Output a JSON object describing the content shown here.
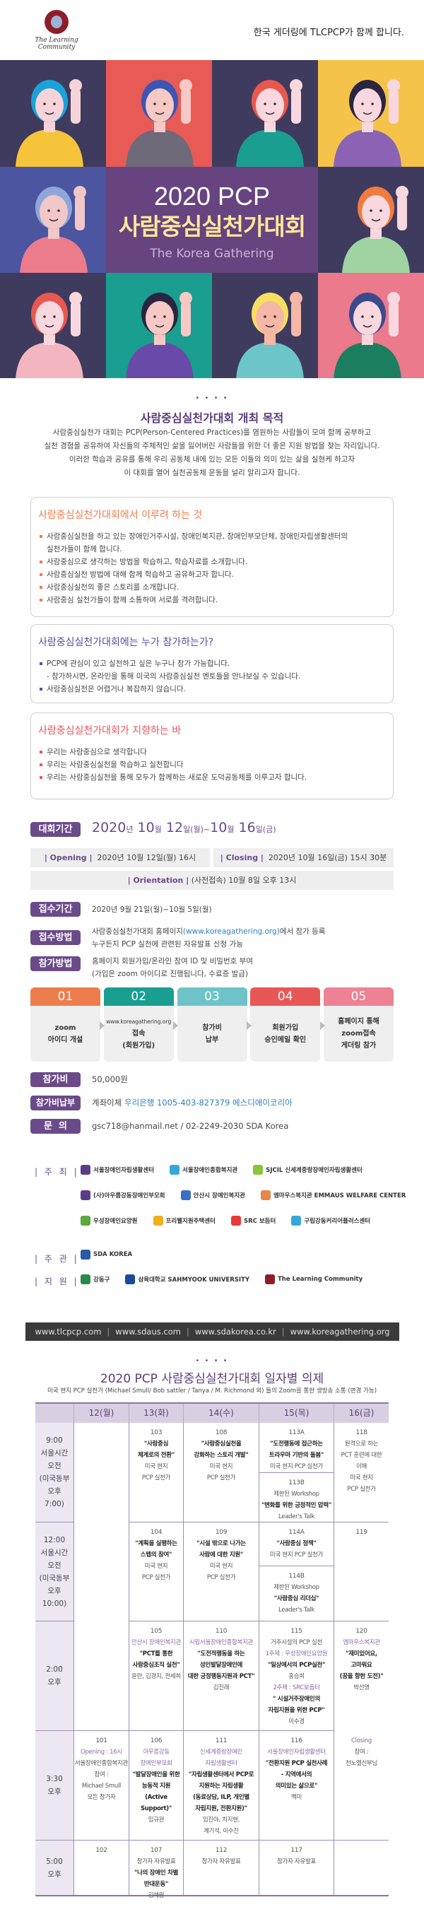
{
  "header": {
    "logo_text": "The Learning Community",
    "tagline": "한국 게더링에 TLCPCP가 함께 합니다."
  },
  "hero": {
    "year": "2020 PCP",
    "title": "사람중심실천가대회",
    "subtitle": "The Korea Gathering",
    "tiles": [
      {
        "bg": "#3f3b5e",
        "hair": "#1aa3d9",
        "shirt": "#f5c43a",
        "skin": "#f6d3d8"
      },
      {
        "bg": "#e85a56",
        "hair": "#3c55b3",
        "shirt": "#6e6a7a",
        "skin": "#f6c9c4"
      },
      {
        "bg": "#3f3b5e",
        "hair": "#e8584f",
        "shirt": "#1a9e8f",
        "skin": "#f8d8de"
      },
      {
        "bg": "#f6c34a",
        "hair": "#2a2540",
        "shirt": "#8a63b5",
        "skin": "#f8d8de"
      },
      {
        "bg": "#4b55a0",
        "hair": "#8fa6d8",
        "shirt": "#ec7b8c",
        "skin": "#f2c7c7"
      },
      {
        "bg": "#3f3b5e",
        "hair": "#ef7b3e",
        "shirt": "#9fd3a2",
        "skin": "#f8d8de"
      },
      {
        "bg": "#3f3b5e",
        "hair": "#e8584f",
        "shirt": "#f3b6c0",
        "skin": "#f8d8de"
      },
      {
        "bg": "#1a9e8f",
        "hair": "#2a2540",
        "shirt": "#6a4aa8",
        "skin": "#f6c9c4"
      },
      {
        "bg": "#3f3b5e",
        "hair": "#f7df62",
        "shirt": "#6cc6c8",
        "skin": "#f5b7a6"
      },
      {
        "bg": "#ea7a8c",
        "hair": "#3b4a8a",
        "shirt": "#1b7f5f",
        "skin": "#f8d8de"
      }
    ]
  },
  "purpose": {
    "dots": "• • • •",
    "title": "사람중심실천가대회 개최 목적",
    "lines": [
      "사람중심실천가 대회는 PCP(Person-Centered Practices)를 염원하는 사람들이 모여 함께 공부하고",
      "실천 경험을 공유하여 자신들의 주체적인 삶을 잃어버린 사람들을 위한 더 좋은 지원 방법을 찾는 자리입니다.",
      "이러한 학습과 공유를 통해 우리 공동체 내에 있는 모든 이들의 의미 있는 삶을 실현케 하고자",
      "이 대회를 열어 실천공동체 운동을 널리 알리고자 합니다."
    ]
  },
  "boxes": [
    {
      "title": "사람중심실천가대회에서 이루려 하는 것",
      "color": "#ef7b4d",
      "items": [
        "사람중심실천을 하고 있는 장애인거주시설, 장애인복지관, 장애인부모단체, 장애인자립생활센터의",
        "실천가들이 함께 합니다.",
        "사람중심으로 생각하는 방법을 학습하고, 학습자료를 소개합니다.",
        "사람중심실천 방법에 대해 함께 학습하고 공유하고자 합니다.",
        "사람중심실천의 좋은 스토리를 소개합니다.",
        "사람중심 실천가들이 함께 소통하며 서로를 격려합니다."
      ]
    },
    {
      "title": "사람중심실천가대회에는 누가 참가하는가?",
      "color": "#5a4ca0",
      "items": [
        "PCP에 관심이 있고 실천하고 싶은 누구나 참가 가능합니다.",
        "- 참가하시면, 온라인을 통해 미국의 사람중심실천 멘토들을 만나보실 수 있습니다.",
        "사람중심실천은 어렵거나 복잡하지 않습니다."
      ]
    },
    {
      "title": "사람중심실천가대회가 지향하는 바",
      "color": "#e8555e",
      "items": [
        "우리는 사람중심으로 생각합니다",
        "우리는 사람중심실천을 학습하고 실천합니다",
        "우리는 사람중심실천을 통해 모두가 함께하는 새로운 도덕공동체를 이루고자 합니다."
      ]
    }
  ],
  "event": {
    "period_label": "대회기간",
    "period": {
      "y": "2020",
      "y_u": "년",
      "m1": "10",
      "m_u": "월",
      "d1": "12",
      "d1_u": "일(월)~",
      "m2": "10",
      "d2": "16",
      "d2_u": "일(금)"
    },
    "opening_label": "| Opening |",
    "opening": "2020년 10월 12일(월) 16시",
    "closing_label": "| Closing |",
    "closing": "2020년 10월 16일(금) 15시 30분",
    "orientation_label": "| Orientation |",
    "orientation": "(사전접속) 10월 8일 오후 13시",
    "reg_period_label": "접수기간",
    "reg_period": "2020년 9월 21일(월)~10월 5일(월)",
    "reg_method_label": "접수방법",
    "reg_method_pre": "사람중심실천가대회 홈페이지",
    "reg_method_link": "(www.koreagathering.org)",
    "reg_method_post": "에서 참가 등록",
    "reg_method_line2": "누구든지 PCP 실천에 관련된 자유발표 신청 가능",
    "join_method_label": "참가방법",
    "join_method_line1": "홈페이지 회원가입/온라인 참여 ID 및 비밀번호 부여",
    "join_method_line2": "(가입은 zoom 아이디로 진행됩니다, 수료증 발급)",
    "fee_label": "참가비",
    "fee": "50,000원",
    "payment_label": "참가비납부",
    "payment_pre": "계좌이체 ",
    "payment_account": "우리은행 1005-403-827379 에스디에이코리아",
    "contact_label": "문  의",
    "contact": "gsc718@hanmail.net / 02-2249-2030 SDA Korea"
  },
  "steps": [
    {
      "num": "01",
      "color": "#ee7d4d",
      "small": "",
      "lines": [
        "zoom",
        "아이디 개설"
      ]
    },
    {
      "num": "02",
      "color": "#1a9e92",
      "small": "www.koreagathering.org",
      "lines": [
        "접속",
        "(회원가입)"
      ]
    },
    {
      "num": "03",
      "color": "#6ec3c8",
      "small": "",
      "lines": [
        "참가비",
        "납부"
      ]
    },
    {
      "num": "04",
      "color": "#e85757",
      "small": "",
      "lines": [
        "회원가입",
        "승인메일 확인"
      ]
    },
    {
      "num": "05",
      "color": "#ee8194",
      "small": "",
      "lines": [
        "홈페이지 통해",
        "zoom접속",
        "게더링 참가"
      ]
    }
  ],
  "sponsors": {
    "host_label": "| 주 최 |",
    "host_rows": [
      [
        {
          "name": "서울장애인자립생활센터",
          "color": "#5a3d8a"
        },
        {
          "name": "서울장애인종합복지관",
          "color": "#35a8d8"
        },
        {
          "name": "SJCIL 신세계중랑장애인자립생활센터",
          "color": "#8cc43c"
        }
      ],
      [
        {
          "name": "(사)아우름강동장애인부모회",
          "color": "#5a3d8a"
        },
        {
          "name": "안산시 장애인복지관",
          "color": "#3b6fc4"
        },
        {
          "name": "엠마우스복지관 EMMAUS WELFARE CENTER",
          "color": "#e8874a"
        }
      ],
      [
        {
          "name": "우성장애인요양원",
          "color": "#5caa3c"
        },
        {
          "name": "프리웰지원주택센터",
          "color": "#f0b020"
        },
        {
          "name": "SRC 보듬터",
          "color": "#e83a3a"
        },
        {
          "name": "구립강동커리어플러스센터",
          "color": "#35a8d8"
        }
      ]
    ],
    "organizer_label": "| 주 관 |",
    "organizer": [
      {
        "name": "SDA KOREA",
        "color": "#2a5aa8"
      }
    ],
    "support_label": "| 지 원 |",
    "support": [
      {
        "name": "강동구",
        "color": "#2a8a4a"
      },
      {
        "name": "삼육대학교 SAHMYOOK UNIVERSITY",
        "color": "#1a4a9a"
      },
      {
        "name": "The Learning Community",
        "color": "#8e1d2c"
      }
    ]
  },
  "footer_links": [
    "www.tlcpcp.com",
    "www.sdaus.com",
    "www.sdakorea.co.kr",
    "www.koreagathering.org"
  ],
  "agenda": {
    "dots": "• • • •",
    "title": "2020 PCP 사람중심실천가대회 일자별 의제",
    "subtitle": "미국 현지 PCP 실천가 (Michael Smull/ Bob sattler / Tanya / M. Richmond 외) 들의 Zoom을 통한 생방송 소통 (변경 가능)",
    "days": [
      "12(월)",
      "13(화)",
      "14(수)",
      "15(목)",
      "16(금)"
    ],
    "times": [
      [
        "9:00",
        "서울시간",
        "오전",
        "(미국동부",
        "오후",
        "7:00)"
      ],
      [
        "12:00",
        "서울시간",
        "오전",
        "(미국동부",
        "오후",
        "10:00)"
      ],
      [
        "2:00",
        "오후"
      ],
      [
        "3:30",
        "오후"
      ],
      [
        "5:00",
        "오후"
      ]
    ],
    "cells": [
      {
        "key": "c103",
        "lines": [
          [
            "n",
            "103"
          ],
          [
            "b",
            "\"사람중심"
          ],
          [
            "b",
            "체계로의 전환\""
          ],
          [
            "p",
            "미국 현지"
          ],
          [
            "p",
            "PCP 실천가"
          ]
        ]
      },
      {
        "key": "c108",
        "lines": [
          [
            "n",
            "108"
          ],
          [
            "b",
            "\"사람중심실천을"
          ],
          [
            "b",
            "강화하는 스토리 개발\""
          ],
          [
            "p",
            "미국 현지"
          ],
          [
            "p",
            "PCP 실천가"
          ]
        ]
      },
      {
        "key": "c113a",
        "lines": [
          [
            "n",
            "113A"
          ],
          [
            "b",
            "\"도전행동에 접근하는"
          ],
          [
            "b",
            "트라우마 기반의 돌봄\""
          ],
          [
            "p",
            "미국 현지 PCP 실천가"
          ]
        ]
      },
      {
        "key": "c113b",
        "lines": [
          [
            "n",
            "113B"
          ],
          [
            "p",
            "제한된 Workshop"
          ],
          [
            "b",
            "\"변화를 위한 긍정적인 압력\""
          ],
          [
            "p",
            "Leader's Talk"
          ]
        ]
      },
      {
        "key": "c118",
        "lines": [
          [
            "n",
            "118"
          ],
          [
            "p",
            "원격으로 하는"
          ],
          [
            "p",
            "PCT 훈련에 대한"
          ],
          [
            "p",
            "이해"
          ],
          [
            "p",
            "미국 현지"
          ],
          [
            "p",
            "PCP 실천가"
          ]
        ]
      },
      {
        "key": "c104",
        "lines": [
          [
            "n",
            "104"
          ],
          [
            "b",
            "\"계획을 실행하는"
          ],
          [
            "b",
            "스텝의 참여\""
          ],
          [
            "p",
            "미국 현지"
          ],
          [
            "p",
            "PCP 실천가"
          ]
        ]
      },
      {
        "key": "c109",
        "lines": [
          [
            "n",
            "109"
          ],
          [
            "b",
            "\"시설 밖으로 나가는"
          ],
          [
            "b",
            "사람에 대한 지원\""
          ],
          [
            "p",
            "미국 현지"
          ],
          [
            "p",
            "PCP 실천가"
          ]
        ]
      },
      {
        "key": "c114a",
        "lines": [
          [
            "n",
            "114A"
          ],
          [
            "b",
            "\"사람중심 정책\""
          ],
          [
            "p",
            "미국 현지 PCP 실천가"
          ]
        ]
      },
      {
        "key": "c114b",
        "lines": [
          [
            "n",
            "114B"
          ],
          [
            "p",
            "제한된 Workshop"
          ],
          [
            "b",
            "\"사람중심 리더십\""
          ],
          [
            "p",
            "Leader's Talk"
          ]
        ]
      },
      {
        "key": "c119",
        "lines": [
          [
            "n",
            "119"
          ]
        ]
      },
      {
        "key": "c105",
        "lines": [
          [
            "n",
            "105"
          ],
          [
            "o",
            "안산시 장애인복지관"
          ],
          [
            "b",
            "\"PCT를 통한"
          ],
          [
            "b",
            "사람중심조직 실천\""
          ],
          [
            "p",
            "윤란, 김경지, 전세희"
          ]
        ]
      },
      {
        "key": "c110",
        "lines": [
          [
            "n",
            "110"
          ],
          [
            "o",
            "시립서울장애인종합복지관"
          ],
          [
            "b",
            "\"도전적행동을 하는"
          ],
          [
            "b",
            "성인발달장애인에"
          ],
          [
            "b",
            "대한 긍정행동지원과 PCT\""
          ],
          [
            "p",
            "김진래"
          ]
        ]
      },
      {
        "key": "c115",
        "lines": [
          [
            "n",
            "115"
          ],
          [
            "p",
            "거주시설의 PCP 실천"
          ],
          [
            "o",
            "1주제 : 우성장애인요양원"
          ],
          [
            "b",
            "\"일상에서의 PCP실천\""
          ],
          [
            "p",
            "홍승희"
          ],
          [
            "o",
            "2주제 : SRC보듬터"
          ],
          [
            "b",
            "\" 시설거주장애인의"
          ],
          [
            "b",
            "자립지원을 위한 PCP\""
          ],
          [
            "p",
            "이수경"
          ]
        ]
      },
      {
        "key": "c120",
        "lines": [
          [
            "n",
            "120"
          ],
          [
            "o",
            "엠마우스복지관"
          ],
          [
            "b",
            "\"재미있어요,"
          ],
          [
            "b",
            "고마워요"
          ],
          [
            "b",
            "(꿈을 향한 도전)\""
          ],
          [
            "p",
            "박선영"
          ]
        ]
      },
      {
        "key": "c101",
        "lines": [
          [
            "n",
            "101"
          ],
          [
            "o",
            "Opening : 16시"
          ],
          [
            "p",
            "서울장애인종합복지관"
          ],
          [
            "p",
            "참여 :"
          ],
          [
            "p",
            "Michael Smull"
          ],
          [
            "p",
            "모든 참가자"
          ]
        ]
      },
      {
        "key": "c106",
        "lines": [
          [
            "n",
            "106"
          ],
          [
            "o",
            "아우름강동"
          ],
          [
            "o",
            "장애인부모회"
          ],
          [
            "b",
            "\"발달장애인을 위한"
          ],
          [
            "b",
            "능동적 지원"
          ],
          [
            "b",
            "(Active Support)\""
          ],
          [
            "p",
            "임규완"
          ]
        ]
      },
      {
        "key": "c111",
        "lines": [
          [
            "n",
            "111"
          ],
          [
            "o",
            "신세계중랑장애인"
          ],
          [
            "o",
            "자립생활센터"
          ],
          [
            "b",
            "\"자립생활센터에서 PCP로"
          ],
          [
            "b",
            "지원하는 자립생활"
          ],
          [
            "b",
            "(동료상담, ILP, 개인별"
          ],
          [
            "b",
            "자립지원, 전환지원)\""
          ],
          [
            "p",
            "임진아, 치지현,"
          ],
          [
            "p",
            "계기석, 이수진"
          ]
        ]
      },
      {
        "key": "c116",
        "lines": [
          [
            "n",
            "116"
          ],
          [
            "o",
            "서울장애인자립생활센터"
          ],
          [
            "b",
            "\"전환지원 PCP 실천사례"
          ],
          [
            "b",
            "- 지역에서의"
          ],
          [
            "b",
            "의미있는 삶으로\""
          ],
          [
            "p",
            "백미"
          ]
        ]
      },
      {
        "key": "c_closing",
        "lines": [
          [
            "o",
            "Closing"
          ],
          [
            "p",
            "참여 :"
          ],
          [
            "p",
            "천노엘신부님"
          ]
        ]
      },
      {
        "key": "c102",
        "lines": [
          [
            "n",
            "102"
          ]
        ]
      },
      {
        "key": "c107",
        "lines": [
          [
            "n",
            "107"
          ],
          [
            "p",
            "참가자 자유발표"
          ],
          [
            "b",
            "\"나의 장애인 차별"
          ],
          [
            "b",
            "반대운동\""
          ],
          [
            "p",
            "김예람"
          ]
        ]
      },
      {
        "key": "c112",
        "lines": [
          [
            "n",
            "112"
          ],
          [
            "p",
            "참가자 자유발표"
          ]
        ]
      },
      {
        "key": "c117",
        "lines": [
          [
            "n",
            "117"
          ],
          [
            "p",
            "참가자 자유발표"
          ]
        ]
      }
    ]
  }
}
